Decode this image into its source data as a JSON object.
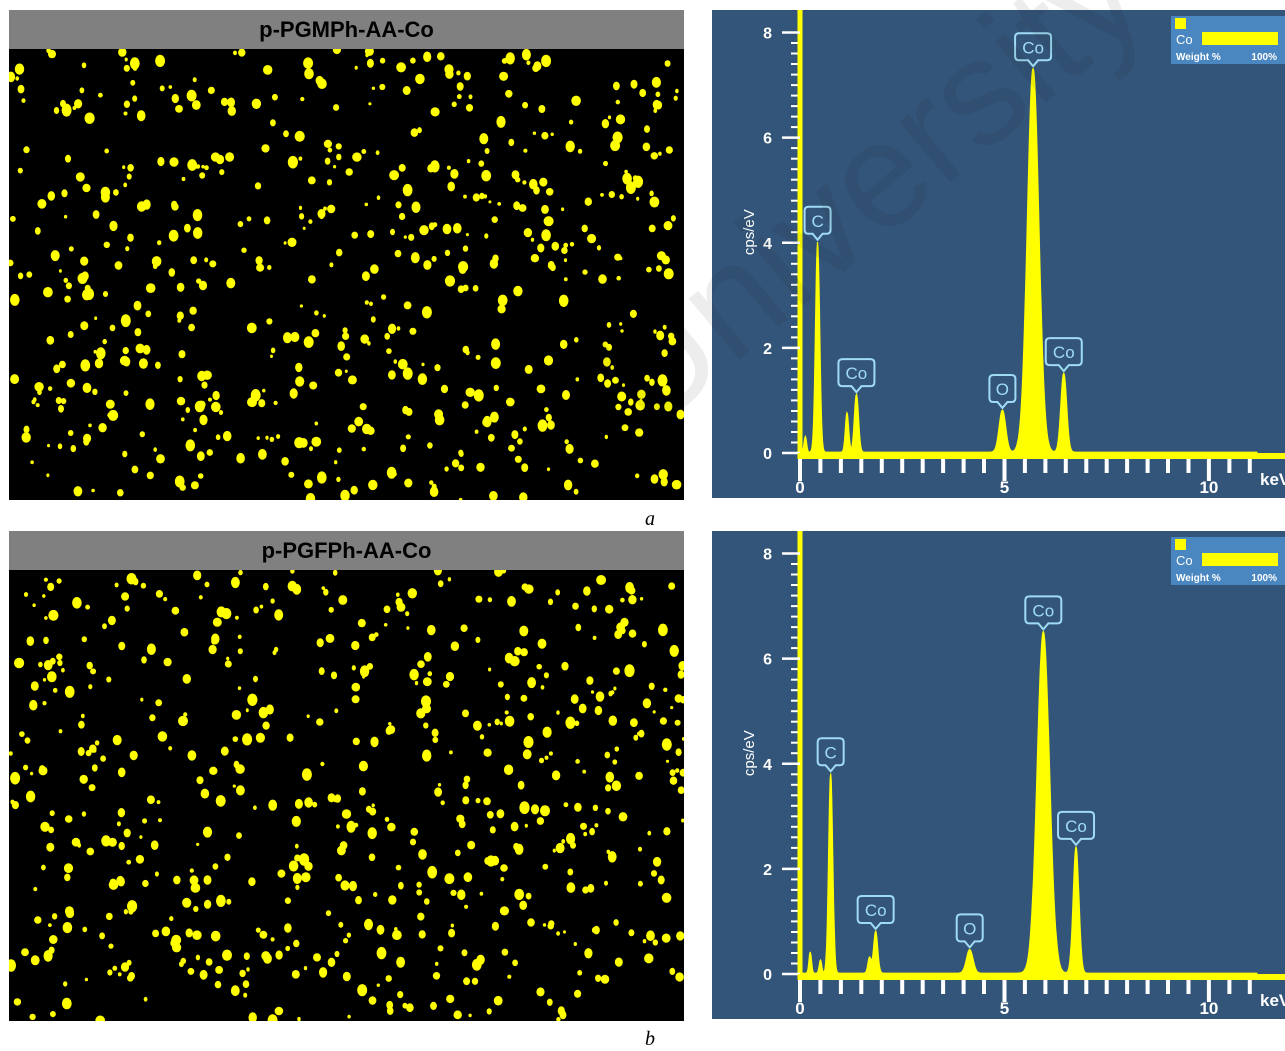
{
  "panels": [
    {
      "label": "a",
      "map_title": "p-PGMPh-AA-Co"
    },
    {
      "label": "b",
      "map_title": "p-PGFPh-AA-Co"
    }
  ],
  "watermark": "University",
  "colors": {
    "spectrum": "#ffff00",
    "background": "#34557a",
    "map_bg": "#000000",
    "callout": "#9fdcf4",
    "title_bar": "#808080"
  },
  "chart_data": [
    {
      "type": "line",
      "title": "",
      "xlabel": "keV",
      "ylabel": "cps/eV",
      "xlim": [
        0,
        11.2
      ],
      "ylim": [
        0,
        8.2
      ],
      "x_ticks": [
        0,
        5,
        10
      ],
      "y_ticks": [
        0,
        2,
        4,
        6,
        8
      ],
      "legend": {
        "element": "Co",
        "weight_label": "Weight %",
        "weight_value": "100%",
        "position": "top-right"
      },
      "peaks": [
        {
          "element": "",
          "energy": 0.13,
          "height": 0.3,
          "width": 0.03
        },
        {
          "element": "C",
          "energy": 0.43,
          "height": 4.0,
          "width": 0.05
        },
        {
          "element": "",
          "energy": 1.15,
          "height": 0.75,
          "width": 0.04
        },
        {
          "element": "Co",
          "energy": 1.38,
          "height": 1.1,
          "width": 0.05
        },
        {
          "element": "O",
          "energy": 4.95,
          "height": 0.8,
          "width": 0.08
        },
        {
          "element": "Co",
          "energy": 5.7,
          "height": 7.3,
          "width": 0.14
        },
        {
          "element": "Co",
          "energy": 6.45,
          "height": 1.5,
          "width": 0.07
        }
      ]
    },
    {
      "type": "line",
      "title": "",
      "xlabel": "keV",
      "ylabel": "cps/eV",
      "xlim": [
        0,
        11.2
      ],
      "ylim": [
        0,
        8.2
      ],
      "x_ticks": [
        0,
        5,
        10
      ],
      "y_ticks": [
        0,
        2,
        4,
        6,
        8
      ],
      "legend": {
        "element": "Co",
        "weight_label": "Weight %",
        "weight_value": "100%",
        "position": "top-right"
      },
      "peaks": [
        {
          "element": "",
          "energy": 0.25,
          "height": 0.4,
          "width": 0.03
        },
        {
          "element": "",
          "energy": 0.5,
          "height": 0.25,
          "width": 0.03
        },
        {
          "element": "C",
          "energy": 0.75,
          "height": 3.8,
          "width": 0.05
        },
        {
          "element": "",
          "energy": 1.7,
          "height": 0.3,
          "width": 0.04
        },
        {
          "element": "Co",
          "energy": 1.85,
          "height": 0.8,
          "width": 0.05
        },
        {
          "element": "O",
          "energy": 4.15,
          "height": 0.45,
          "width": 0.08
        },
        {
          "element": "Co",
          "energy": 5.95,
          "height": 6.5,
          "width": 0.15
        },
        {
          "element": "Co",
          "energy": 6.75,
          "height": 2.4,
          "width": 0.07
        }
      ]
    }
  ]
}
